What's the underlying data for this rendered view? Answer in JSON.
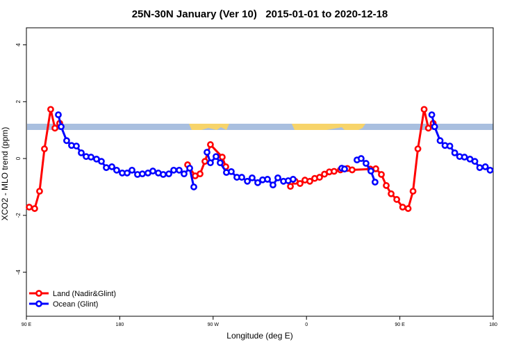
{
  "chart_data": {
    "type": "line",
    "title": "25N-30N January (Ver 10)   2015-01-01 to 2020-12-18",
    "x_label": "Longitude (deg E)",
    "y_label": "XCO2 - MLO trend (ppm)",
    "xlim": [
      90,
      540
    ],
    "ylim": [
      -5.55,
      4.6
    ],
    "xticks": [
      {
        "value": 90,
        "label": "90 E"
      },
      180,
      {
        "value": 270,
        "label": "90 W"
      },
      {
        "value": 360,
        "label": "0"
      },
      {
        "value": 450,
        "label": "90 E"
      },
      {
        "value": 540,
        "label": "180"
      }
    ],
    "yticks": [
      -4,
      -2,
      0,
      2,
      4
    ],
    "legend": "bottom-left",
    "series": [
      {
        "name": "Land (Nadir&Glint)",
        "color": "#ff0000",
        "x": [
          92.7,
          98.0,
          102.7,
          107.4,
          113.4,
          117.5,
          122.1,
          190,
          245.4,
          252.7,
          257.4,
          262.1,
          267.4,
          278.8,
          282.2,
          300,
          344.5,
          349.1,
          353.8,
          358.5,
          363.2,
          367.9,
          372.6,
          377.3,
          382.0,
          386.6,
          392.7,
          399.4,
          404.0,
          421.5,
          426.8,
          432.2,
          436.9,
          441.6,
          447.0,
          452.7,
          458.0,
          462.7,
          467.4,
          473.4,
          477.5,
          482.1
        ],
        "values": [
          -1.71,
          -1.76,
          -1.15,
          0.34,
          1.73,
          1.07,
          1.24,
          null,
          -0.22,
          -0.61,
          -0.54,
          -0.1,
          0.49,
          0.05,
          -0.29,
          null,
          -0.98,
          -0.8,
          -0.88,
          -0.76,
          -0.8,
          -0.7,
          -0.66,
          -0.55,
          -0.47,
          -0.45,
          -0.4,
          -0.35,
          -0.4,
          -0.37,
          -0.36,
          -0.56,
          -0.95,
          -1.24,
          -1.44,
          -1.71,
          -1.76,
          -1.15,
          0.34,
          1.73,
          1.07,
          1.24
        ]
      },
      {
        "name": "Ocean (Glint)",
        "color": "#0000ff",
        "x": [
          120.8,
          123.5,
          128.8,
          133.5,
          138.2,
          142.9,
          147.6,
          152.3,
          157.6,
          162.3,
          167.0,
          172.4,
          177.0,
          182.4,
          187.1,
          191.8,
          197.1,
          201.8,
          207.2,
          211.9,
          217.2,
          221.9,
          227.3,
          232.0,
          237.3,
          242.0,
          247.4,
          251.4,
          258,
          264.1,
          267.4,
          272.8,
          276.8,
          282.8,
          287.5,
          292.9,
          297.6,
          303.0,
          307.6,
          313.0,
          317.7,
          322.4,
          327.7,
          332.4,
          337.8,
          342.4,
          347.1,
          370,
          394.0,
          396.7,
          402,
          408.7,
          412.7,
          417.4,
          422.1,
          426.1,
          450,
          480.8,
          483.5,
          488.8,
          493.5,
          498.2,
          502.9,
          507.6,
          512.3,
          517.6,
          522.3,
          527.0,
          532.4,
          537.0
        ],
        "values": [
          1.54,
          1.12,
          0.63,
          0.46,
          0.44,
          0.2,
          0.07,
          0.05,
          -0.02,
          -0.1,
          -0.32,
          -0.29,
          -0.41,
          -0.51,
          -0.51,
          -0.41,
          -0.56,
          -0.54,
          -0.51,
          -0.44,
          -0.51,
          -0.56,
          -0.54,
          -0.41,
          -0.41,
          -0.54,
          -0.34,
          -1.0,
          null,
          0.22,
          -0.15,
          0.07,
          -0.15,
          -0.49,
          -0.46,
          -0.66,
          -0.66,
          -0.8,
          -0.68,
          -0.85,
          -0.75,
          -0.73,
          -0.93,
          -0.68,
          -0.8,
          -0.78,
          -0.73,
          null,
          -0.34,
          -0.37,
          null,
          -0.05,
          0.0,
          -0.17,
          -0.44,
          -0.83,
          null,
          1.54,
          1.12,
          0.63,
          0.46,
          0.44,
          0.2,
          0.07,
          0.05,
          -0.02,
          -0.1,
          -0.32,
          -0.29,
          -0.41
        ]
      }
    ]
  }
}
